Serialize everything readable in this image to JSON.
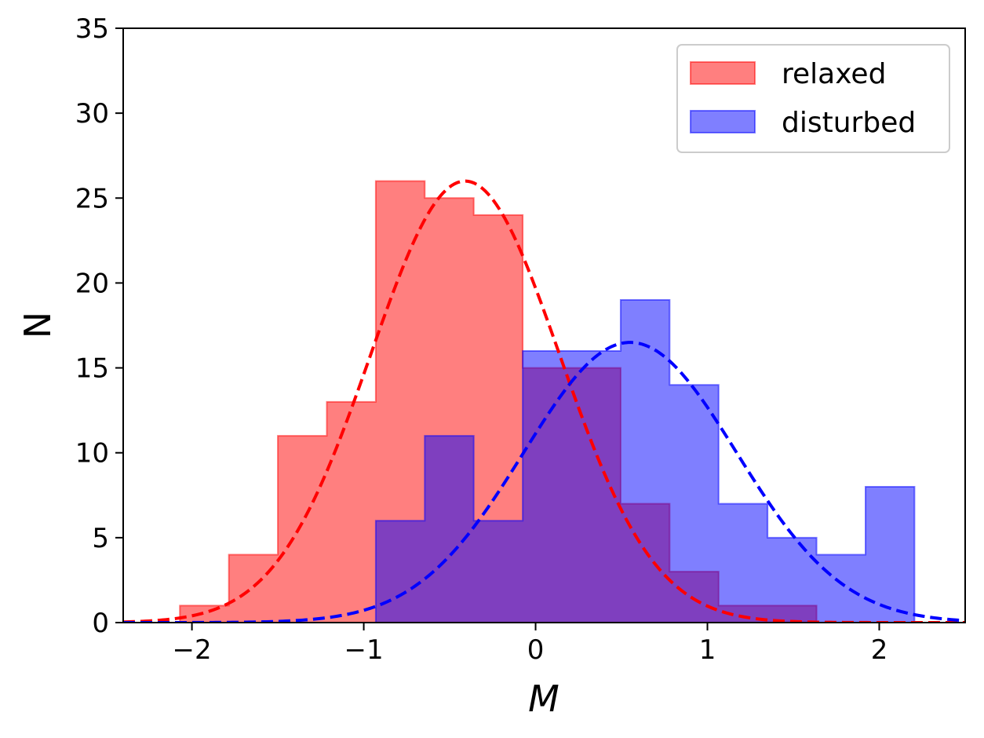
{
  "chart_data": {
    "type": "histogram",
    "xlabel": "M",
    "ylabel": "N",
    "xlim": [
      -2.4,
      2.5
    ],
    "ylim": [
      0,
      35
    ],
    "xticks": [
      -2,
      -1,
      0,
      1,
      2
    ],
    "xtick_labels": [
      "−2",
      "−1",
      "0",
      "1",
      "2"
    ],
    "yticks": [
      0,
      5,
      10,
      15,
      20,
      25,
      30,
      35
    ],
    "ytick_labels": [
      "0",
      "5",
      "10",
      "15",
      "20",
      "25",
      "30",
      "35"
    ],
    "legend_position": "top-right",
    "bin_edges": [
      -2.07,
      -1.785,
      -1.5,
      -1.215,
      -0.93,
      -0.645,
      -0.36,
      -0.075,
      0.21,
      0.495,
      0.78,
      1.065,
      1.35,
      1.635,
      1.92,
      2.205
    ],
    "series": [
      {
        "name": "relaxed",
        "color": "#ff0000",
        "counts": [
          1,
          4,
          11,
          13,
          26,
          25,
          24,
          15,
          15,
          7,
          3,
          1,
          1,
          0,
          0
        ],
        "fit": {
          "mean": -0.41,
          "sigma": 0.55,
          "peak": 26
        }
      },
      {
        "name": "disturbed",
        "color": "#0000ff",
        "counts": [
          0,
          0,
          0,
          0,
          6,
          11,
          6,
          16,
          16,
          19,
          14,
          7,
          5,
          4,
          8
        ],
        "fit": {
          "mean": 0.55,
          "sigma": 0.62,
          "peak": 16.5
        }
      }
    ]
  }
}
